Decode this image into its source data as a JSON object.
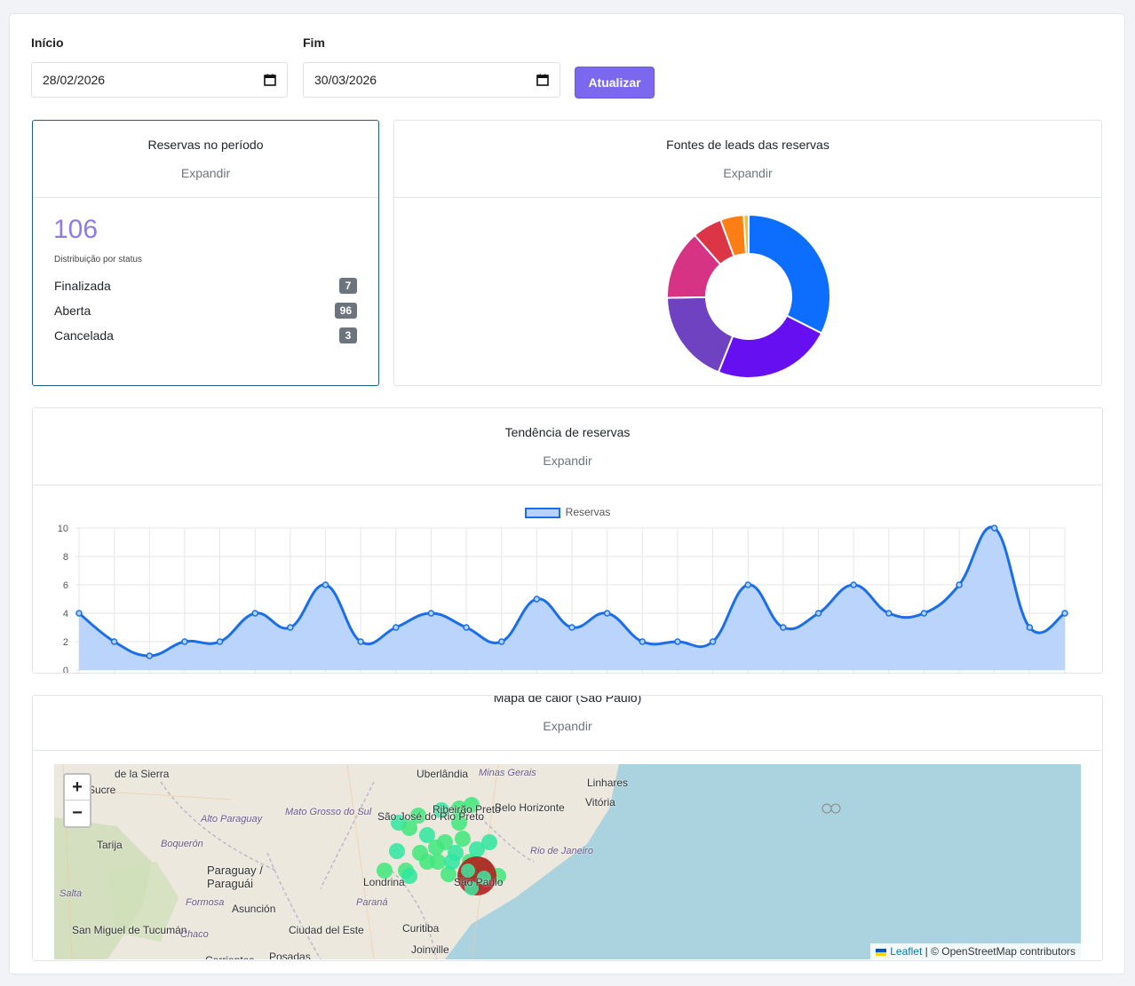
{
  "filters": {
    "start_label": "Início",
    "start_value": "28/02/2026",
    "end_label": "Fim",
    "end_value": "30/03/2026",
    "update_label": "Atualizar"
  },
  "reservations_card": {
    "title": "Reservas no período",
    "expand": "Expandir",
    "total": "106",
    "dist_label": "Distribuição por status",
    "statuses": [
      {
        "label": "Finalizada",
        "count": "7"
      },
      {
        "label": "Aberta",
        "count": "96"
      },
      {
        "label": "Cancelada",
        "count": "3"
      }
    ]
  },
  "leads_card": {
    "title": "Fontes de leads das reservas",
    "expand": "Expandir",
    "chart_data": {
      "type": "pie",
      "donut": true,
      "values": [
        33,
        24,
        19,
        14,
        6,
        4.7,
        1
      ],
      "colors": [
        "#0d6efd",
        "#6610f2",
        "#6f42c1",
        "#d63384",
        "#dc3545",
        "#fd7e14",
        "#ffc107"
      ]
    }
  },
  "trend_card": {
    "title": "Tendência de reservas",
    "expand": "Expandir",
    "chart_data": {
      "type": "area",
      "series": [
        {
          "name": "Reservas",
          "values": [
            4,
            2,
            1,
            2,
            2,
            4,
            3,
            6,
            2,
            3,
            4,
            3,
            2,
            5,
            3,
            4,
            2,
            2,
            2,
            6,
            3,
            4,
            6,
            4,
            4,
            6,
            10,
            3,
            4
          ]
        }
      ],
      "yticks": [
        "0",
        "2",
        "4",
        "6",
        "8",
        "10"
      ],
      "ylim": [
        0,
        10
      ],
      "grid": true,
      "legend": "top",
      "color": "#1a6ee8",
      "fill": "#b7d2fb"
    }
  },
  "heatmap_card": {
    "title": "Mapa de calor (São Paulo)",
    "expand": "Expandir",
    "zoom_in": "+",
    "zoom_out": "−",
    "attribution_link": "Leaflet",
    "attribution_text": "| © OpenStreetMap contributors",
    "places": [
      {
        "name": "Uberlândia"
      },
      {
        "name": "Minas Gerais"
      },
      {
        "name": "Linhares"
      },
      {
        "name": "Vitória"
      },
      {
        "name": "Belo Horizonte"
      },
      {
        "name": "Ribeirão Preto"
      },
      {
        "name": "São José do Rio Preto"
      },
      {
        "name": "Mato Grosso do Sul"
      },
      {
        "name": "Alto Paraguay"
      },
      {
        "name": "Boquerón"
      },
      {
        "name": "Paraguay / Paraguái"
      },
      {
        "name": "Rio de Janeiro"
      },
      {
        "name": "Londrina"
      },
      {
        "name": "Paraná"
      },
      {
        "name": "Curitiba"
      },
      {
        "name": "Joinville"
      },
      {
        "name": "Asunción"
      },
      {
        "name": "Formosa"
      },
      {
        "name": "Chaco"
      },
      {
        "name": "Ciudad del Este"
      },
      {
        "name": "Corrientes"
      },
      {
        "name": "Posadas"
      },
      {
        "name": "Salta"
      },
      {
        "name": "San Miguel de Tucumán"
      },
      {
        "name": "Tarija"
      },
      {
        "name": "Sucre"
      },
      {
        "name": "de la Sierra"
      },
      {
        "name": "São Paulo"
      }
    ]
  }
}
